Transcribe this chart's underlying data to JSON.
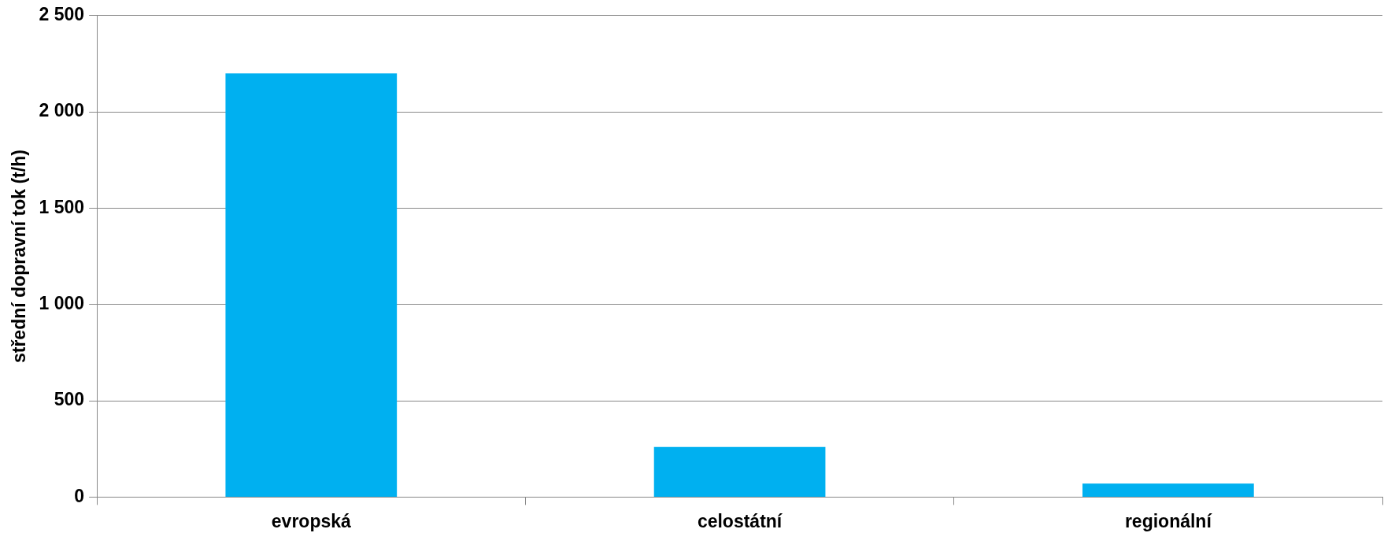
{
  "chart_data": {
    "type": "bar",
    "ylabel": "střední dopravní tok (t/h)",
    "categories": [
      "evropská",
      "celostátní",
      "regionální"
    ],
    "values": [
      2200,
      260,
      70
    ],
    "color": "#00b0f0",
    "ylim": [
      0,
      2500
    ],
    "yticks": [
      {
        "value": 0,
        "label": "0"
      },
      {
        "value": 500,
        "label": "500"
      },
      {
        "value": 1000,
        "label": "1 000"
      },
      {
        "value": 1500,
        "label": "1 500"
      },
      {
        "value": 2000,
        "label": "2 000"
      },
      {
        "value": 2500,
        "label": "2 500"
      }
    ],
    "grid": "y",
    "legend": false
  }
}
